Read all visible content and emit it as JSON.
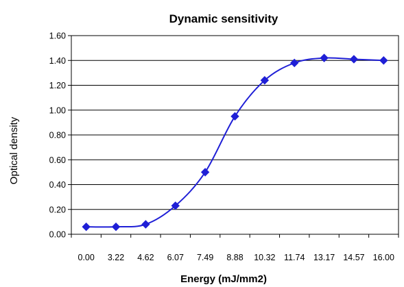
{
  "chart_data": {
    "type": "line",
    "title": "Dynamic sensitivity",
    "xlabel": "Energy (mJ/mm2)",
    "ylabel": "Optical density",
    "categories": [
      "0.00",
      "3.22",
      "4.62",
      "6.07",
      "7.49",
      "8.88",
      "10.32",
      "11.74",
      "13.17",
      "14.57",
      "16.00"
    ],
    "series": [
      {
        "values": [
          0.06,
          0.06,
          0.08,
          0.23,
          0.5,
          0.95,
          1.24,
          1.38,
          1.42,
          1.41,
          1.4
        ]
      }
    ],
    "ylim": [
      0,
      1.6
    ],
    "yticks": [
      "0.00",
      "0.20",
      "0.40",
      "0.60",
      "0.80",
      "1.00",
      "1.20",
      "1.40",
      "1.60"
    ],
    "grid": "horizontal",
    "line_color": "#1f1fd6",
    "marker": "diamond",
    "smooth": true
  }
}
